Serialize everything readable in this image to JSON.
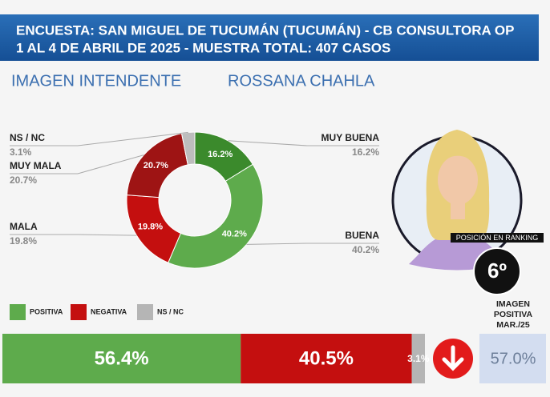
{
  "header": {
    "lines": [
      "ENCUESTA: SAN MIGUEL DE TUCUMÁN (TUCUMÁN) - CB CONSULTORA OP",
      "1 AL 4 DE ABRIL DE 2025 - MUESTRA TOTAL: 407 CASOS"
    ]
  },
  "subject": {
    "topic": "IMAGEN INTENDENTE",
    "name": "ROSSANA CHAHLA",
    "ranking_label": "POSICIÓN EN RANKING",
    "ranking": "6º"
  },
  "previous": {
    "title_lines": [
      "IMAGEN",
      "POSITIVA",
      "MAR./25"
    ],
    "value": 57,
    "value_label": "57.0%"
  },
  "chart_data": [
    {
      "type": "pie",
      "donut": true,
      "categories": [
        "MUY BUENA",
        "BUENA",
        "MALA",
        "MUY MALA",
        "NS / NC"
      ],
      "values": [
        16.2,
        40.2,
        19.8,
        20.7,
        3.1
      ],
      "value_labels": [
        "16.2%",
        "40.2%",
        "19.8%",
        "20.7%",
        "3.1%"
      ],
      "colors": [
        "#3b8a2c",
        "#5eab4c",
        "#c40f0f",
        "#9e1414",
        "#bdbdbd"
      ]
    },
    {
      "type": "bar",
      "orientation": "horizontal",
      "stacked": true,
      "categories": [
        null
      ],
      "xlim": [
        0,
        100
      ],
      "series": [
        {
          "name": "POSITIVA",
          "color": "#5eab4c",
          "values": [
            56.4
          ],
          "value_labels": [
            "56.4%"
          ]
        },
        {
          "name": "NEGATIVA",
          "color": "#c40f0f",
          "values": [
            40.5
          ],
          "value_labels": [
            "40.5%"
          ]
        },
        {
          "name": "NS / NC",
          "color": "#b5b5b5",
          "values": [
            3.1
          ],
          "value_labels": [
            "3.1%"
          ]
        }
      ]
    }
  ]
}
